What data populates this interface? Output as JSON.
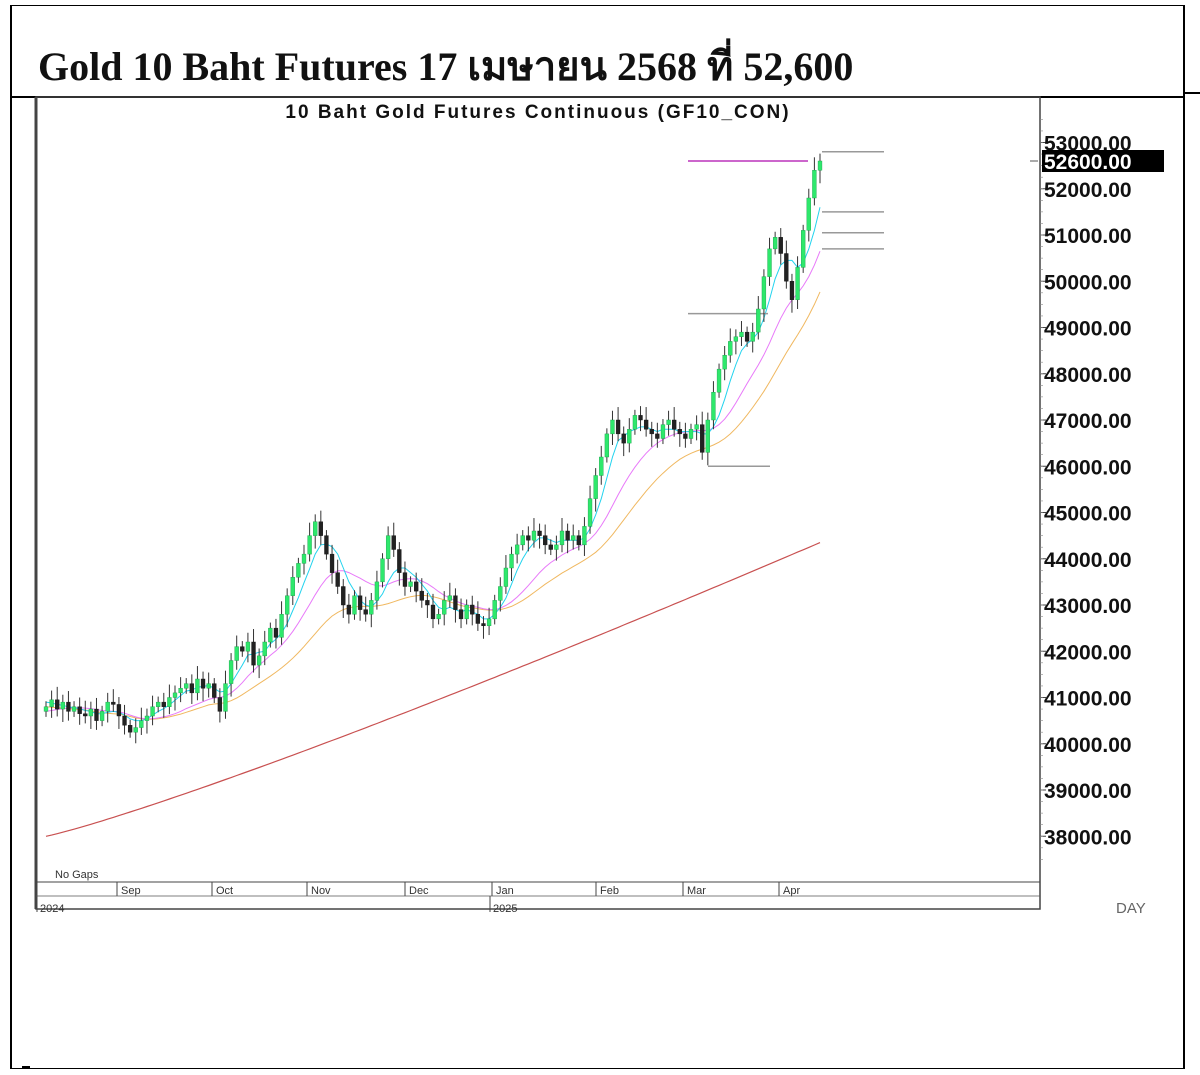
{
  "header": {
    "title": "Gold 10 Baht Futures 17 เมษายน 2568 ที่ 52,600"
  },
  "chart_data": {
    "type": "candlestick",
    "title": "10 Baht Gold Futures Continuous (GF10_CON)",
    "ylim": [
      37000,
      53600
    ],
    "y_ticks": [
      "53000.00",
      "52000.00",
      "51000.00",
      "50000.00",
      "49000.00",
      "48000.00",
      "47000.00",
      "46000.00",
      "45000.00",
      "44000.00",
      "43000.00",
      "42000.00",
      "41000.00",
      "40000.00",
      "39000.00",
      "38000.00"
    ],
    "y_tick_values": [
      53000,
      52000,
      51000,
      50000,
      49000,
      48000,
      47000,
      46000,
      45000,
      44000,
      43000,
      42000,
      41000,
      40000,
      39000,
      38000
    ],
    "last_price_label": "52600.00",
    "last_price": 52600,
    "x_ticks": [
      "Sep",
      "Oct",
      "Nov",
      "Dec",
      "Jan",
      "Feb",
      "Mar",
      "Apr"
    ],
    "year_labels": [
      "2024",
      "2025"
    ],
    "period_label": "DAY",
    "note": "No Gaps",
    "colors": {
      "up": "#2ee86c",
      "down": "#222222",
      "ma_fast": "#22d3ee",
      "ma_mid": "#e879f9",
      "ma_slow": "#f0b860",
      "ma_long": "#c85050",
      "resistance": "#cc66cc",
      "support": "#999999"
    },
    "closes": [
      40800,
      40950,
      40750,
      40900,
      40700,
      40800,
      40650,
      40600,
      40750,
      40500,
      40700,
      40900,
      40850,
      40600,
      40400,
      40250,
      40350,
      40500,
      40600,
      40800,
      40900,
      40800,
      41000,
      41100,
      41200,
      41300,
      41100,
      41400,
      41200,
      41300,
      41000,
      40700,
      41300,
      41800,
      42100,
      42000,
      42200,
      41700,
      41900,
      42200,
      42500,
      42300,
      42800,
      43200,
      43600,
      43900,
      44100,
      44500,
      44800,
      44500,
      44100,
      43700,
      43400,
      43000,
      42800,
      43200,
      42900,
      42800,
      43100,
      43500,
      44000,
      44500,
      44200,
      43700,
      43400,
      43500,
      43300,
      43100,
      43000,
      42700,
      42800,
      43100,
      43200,
      42900,
      42700,
      43000,
      42800,
      42600,
      42550,
      42700,
      43100,
      43400,
      43800,
      44100,
      44300,
      44500,
      44400,
      44600,
      44500,
      44300,
      44200,
      44300,
      44600,
      44400,
      44500,
      44300,
      44700,
      45300,
      45800,
      46200,
      46700,
      47000,
      46700,
      46500,
      46800,
      47100,
      47000,
      46800,
      46700,
      46600,
      46900,
      47000,
      46800,
      46700,
      46600,
      46800,
      46900,
      46300,
      47000,
      47600,
      48100,
      48400,
      48700,
      48800,
      48900,
      48700,
      48900,
      49400,
      50100,
      50700,
      50950,
      50600,
      50000,
      49600,
      50300,
      51100,
      51800,
      52400,
      52600
    ],
    "ma_fast": [
      40900,
      40880,
      40850,
      40830,
      40800,
      40780,
      40760,
      40720,
      40700,
      40650,
      40650,
      40680,
      40700,
      40680,
      40620,
      40540,
      40500,
      40500,
      40540,
      40620,
      40700,
      40760,
      40840,
      40940,
      41040,
      41140,
      41160,
      41220,
      41240,
      41260,
      41200,
      41120,
      41140,
      41300,
      41500,
      41700,
      41920,
      41940,
      41980,
      42000,
      42160,
      42260,
      42400,
      42600,
      42880,
      43160,
      43480,
      43780,
      44100,
      44300,
      44320,
      44260,
      44100,
      43800,
      43500,
      43300,
      43100,
      43000,
      42960,
      43080,
      43240,
      43500,
      43700,
      43800,
      43800,
      43700,
      43600,
      43450,
      43300,
      43100,
      42950,
      42900,
      42950,
      42900,
      42850,
      42900,
      42850,
      42800,
      42700,
      42700,
      42800,
      42950,
      43150,
      43450,
      43750,
      44000,
      44200,
      44350,
      44450,
      44450,
      44400,
      44350,
      44400,
      44400,
      44400,
      44400,
      44450,
      44650,
      44950,
      45300,
      45750,
      46200,
      46550,
      46650,
      46750,
      46800,
      46850,
      46850,
      46800,
      46750,
      46800,
      46800,
      46800,
      46750,
      46750,
      46750,
      46750,
      46700,
      46700,
      46850,
      47100,
      47450,
      47850,
      48200,
      48500,
      48650,
      48750,
      48900,
      49200,
      49600,
      50050,
      50350,
      50450,
      50450,
      50300,
      50400,
      50700,
      51100,
      51600
    ],
    "ma_mid": [
      40700,
      40720,
      40740,
      40760,
      40770,
      40780,
      40780,
      40770,
      40760,
      40740,
      40720,
      40710,
      40700,
      40690,
      40660,
      40620,
      40580,
      40550,
      40540,
      40540,
      40560,
      40580,
      40610,
      40650,
      40700,
      40760,
      40810,
      40860,
      40910,
      40960,
      40990,
      41000,
      41030,
      41100,
      41200,
      41320,
      41460,
      41580,
      41700,
      41800,
      41910,
      42010,
      42130,
      42270,
      42430,
      42610,
      42810,
      43010,
      43220,
      43410,
      43570,
      43680,
      43740,
      43740,
      43700,
      43640,
      43580,
      43510,
      43450,
      43420,
      43410,
      43450,
      43500,
      43540,
      43560,
      43570,
      43560,
      43520,
      43460,
      43380,
      43290,
      43210,
      43150,
      43090,
      43040,
      43000,
      42970,
      42950,
      42920,
      42900,
      42900,
      42930,
      42990,
      43070,
      43170,
      43290,
      43420,
      43560,
      43700,
      43820,
      43920,
      44000,
      44080,
      44150,
      44210,
      44260,
      44330,
      44420,
      44550,
      44720,
      44920,
      45150,
      45380,
      45600,
      45800,
      45980,
      46140,
      46280,
      46400,
      46500,
      46580,
      46640,
      46690,
      46720,
      46740,
      46760,
      46770,
      46770,
      46780,
      46820,
      46900,
      47020,
      47180,
      47370,
      47580,
      47790,
      47990,
      48190,
      48410,
      48660,
      48940,
      49200,
      49420,
      49600,
      49740,
      49900,
      50100,
      50350,
      50650
    ],
    "ma_slow": [
      40800,
      40790,
      40780,
      40770,
      40760,
      40750,
      40740,
      40730,
      40710,
      40690,
      40670,
      40660,
      40650,
      40640,
      40620,
      40590,
      40560,
      40540,
      40530,
      40530,
      40540,
      40560,
      40580,
      40610,
      40640,
      40680,
      40720,
      40760,
      40800,
      40840,
      40860,
      40870,
      40890,
      40930,
      40990,
      41060,
      41140,
      41220,
      41300,
      41380,
      41460,
      41550,
      41640,
      41740,
      41850,
      41970,
      42100,
      42240,
      42380,
      42520,
      42650,
      42760,
      42840,
      42900,
      42940,
      42960,
      42970,
      42970,
      42970,
      42980,
      43000,
      43030,
      43070,
      43110,
      43150,
      43180,
      43200,
      43210,
      43200,
      43180,
      43150,
      43110,
      43070,
      43030,
      42990,
      42960,
      42940,
      42920,
      42900,
      42890,
      42890,
      42900,
      42930,
      42970,
      43030,
      43100,
      43180,
      43270,
      43360,
      43450,
      43530,
      43610,
      43690,
      43760,
      43830,
      43900,
      43970,
      44050,
      44140,
      44250,
      44380,
      44520,
      44680,
      44840,
      45000,
      45160,
      45310,
      45460,
      45600,
      45730,
      45850,
      45960,
      46060,
      46150,
      46220,
      46280,
      46330,
      46370,
      46410,
      46460,
      46520,
      46600,
      46700,
      46820,
      46960,
      47110,
      47270,
      47440,
      47620,
      47820,
      48030,
      48240,
      48450,
      48650,
      48840,
      49040,
      49260,
      49500,
      49770
    ],
    "ma_long_start": 38000,
    "ma_long_end": 44350,
    "levels": [
      {
        "value": 52600,
        "kind": "resistance"
      },
      {
        "value": 52800,
        "kind": "support"
      },
      {
        "value": 51500,
        "kind": "support"
      },
      {
        "value": 51050,
        "kind": "support"
      },
      {
        "value": 50700,
        "kind": "support"
      },
      {
        "value": 49300,
        "kind": "support"
      },
      {
        "value": 46000,
        "kind": "support"
      }
    ]
  }
}
